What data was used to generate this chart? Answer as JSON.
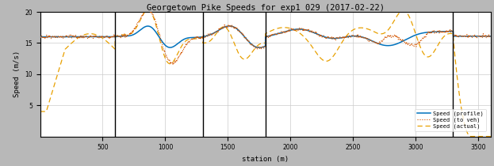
{
  "title": "Georgetown Pike Speeds for exp1_029 (2017-02-22)",
  "xlabel": "station (m)",
  "ylabel": "Speed (m/s)",
  "xlim": [
    0,
    3600
  ],
  "ylim": [
    0,
    20
  ],
  "yticks": [
    5,
    10,
    15,
    20
  ],
  "xticks": [
    500,
    1000,
    1500,
    2000,
    2500,
    3000,
    3500
  ],
  "vlines": [
    600,
    1300,
    1800,
    3300
  ],
  "profile_color": "#0072BD",
  "toveh_color": "#D45500",
  "actual_color": "#E8A000",
  "background_color": "#b8b8b8",
  "axes_bg_color": "#ffffff",
  "legend_labels": [
    "Speed (profile)",
    "Speed (to veh)",
    "Speed (actual)"
  ]
}
